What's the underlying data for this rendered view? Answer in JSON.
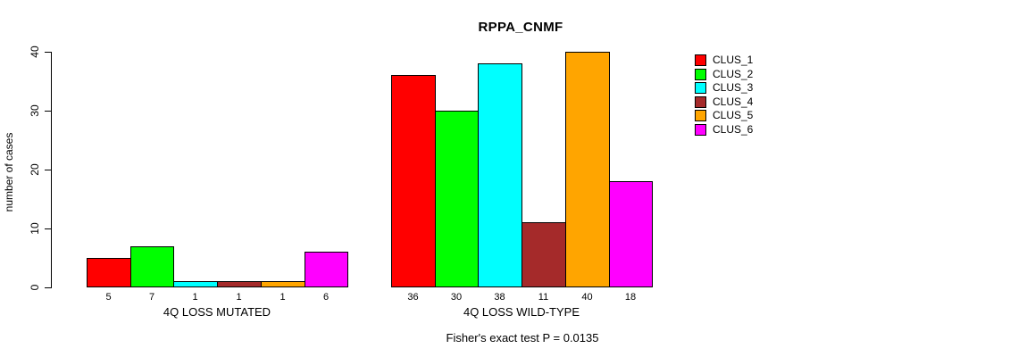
{
  "chart_data": {
    "type": "bar",
    "grouped": true,
    "title": "RPPA_CNMF",
    "xlabel": "",
    "ylabel": "number of cases",
    "ylim": [
      0,
      40
    ],
    "yticks": [
      0,
      10,
      20,
      30,
      40
    ],
    "categories": [
      "4Q LOSS MUTATED",
      "4Q LOSS WILD-TYPE"
    ],
    "series": [
      {
        "name": "CLUS_1",
        "color": "#ff0000",
        "values": [
          5,
          36
        ]
      },
      {
        "name": "CLUS_2",
        "color": "#00ff00",
        "values": [
          7,
          30
        ]
      },
      {
        "name": "CLUS_3",
        "color": "#00ffff",
        "values": [
          1,
          38
        ]
      },
      {
        "name": "CLUS_4",
        "color": "#a52a2a",
        "values": [
          1,
          11
        ]
      },
      {
        "name": "CLUS_5",
        "color": "#ffa500",
        "values": [
          1,
          40
        ]
      },
      {
        "name": "CLUS_6",
        "color": "#ff00ff",
        "values": [
          6,
          18
        ]
      }
    ],
    "show_bar_value_labels": true,
    "legend_position": "right",
    "grid": false,
    "axis_color": "#000000",
    "bar_border_color": "#000000",
    "annotation": "Fisher's exact test P = 0.0135"
  }
}
